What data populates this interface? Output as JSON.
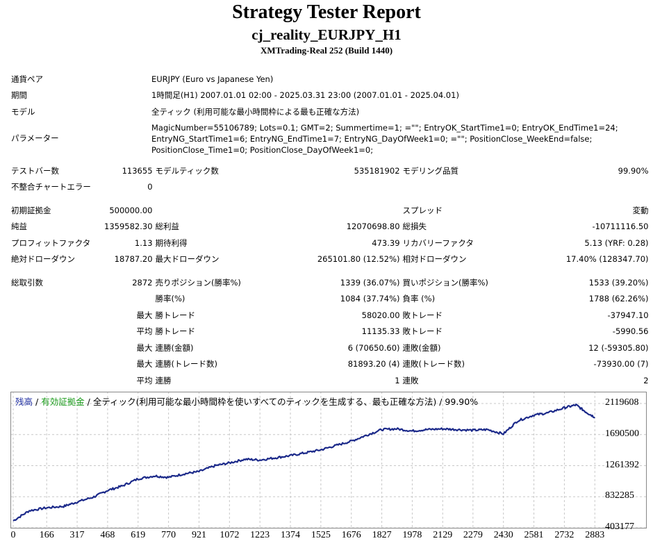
{
  "header": {
    "title": "Strategy Tester Report",
    "subtitle": "cj_reality_EURJPY_H1",
    "build": "XMTrading-Real 252 (Build 1440)"
  },
  "info": {
    "symbol_label": "通貨ペア",
    "symbol_value": "EURJPY (Euro vs Japanese Yen)",
    "period_label": "期間",
    "period_value": "1時間足(H1) 2007.01.01 02:00 - 2025.03.31 23:00 (2007.01.01 - 2025.04.01)",
    "model_label": "モデル",
    "model_value": "全ティック (利用可能な最小時間枠による最も正確な方法)",
    "params_label": "パラメーター",
    "params_line1": "MagicNumber=55106789; Lots=0.1; GMT=2; Summertime=1;     =\"\"; EntryOK_StartTime1=0; EntryOK_EndTime1=24;",
    "params_line2": "EntryNG_StartTime1=6; EntryNG_EndTime1=7; EntryNG_DayOfWeek1=0;           =\"\"; PositionClose_WeekEnd=false;",
    "params_line3": "PositionClose_Time1=0; PositionClose_DayOfWeek1=0;"
  },
  "stats": {
    "bars_label": "テストバー数",
    "bars_value": "113655",
    "ticks_label": "モデルティック数",
    "ticks_value": "535181902",
    "quality_label": "モデリング品質",
    "quality_value": "99.90%",
    "mismatch_label": "不整合チャートエラー",
    "mismatch_value": "0",
    "deposit_label": "初期証拠金",
    "deposit_value": "500000.00",
    "spread_label": "スプレッド",
    "spread_value": "変動",
    "net_label": "純益",
    "net_value": "1359582.30",
    "gross_profit_label": "総利益",
    "gross_profit_value": "12070698.80",
    "gross_loss_label": "総損失",
    "gross_loss_value": "-10711116.50",
    "pf_label": "プロフィットファクタ",
    "pf_value": "1.13",
    "expected_label": "期待利得",
    "expected_value": "473.39",
    "recovery_label": "リカバリーファクタ",
    "recovery_value": "5.13 (YRF: 0.28)",
    "abs_dd_label": "絶対ドローダウン",
    "abs_dd_value": "18787.20",
    "max_dd_label": "最大ドローダウン",
    "max_dd_value": "265101.80 (12.52%)",
    "rel_dd_label": "相対ドローダウン",
    "rel_dd_value": "17.40% (128347.70)",
    "trades_label": "総取引数",
    "trades_value": "2872",
    "short_label": "売りポジション(勝率%)",
    "short_value": "1339 (36.07%)",
    "long_label": "買いポジション(勝率%)",
    "long_value": "1533 (39.20%)",
    "winrate_label": "勝率(%)",
    "winrate_value": "1084 (37.74%)",
    "lossrate_label": "負率 (%)",
    "lossrate_value": "1788 (62.26%)",
    "max_label": "最大",
    "avg_label": "平均",
    "largest_win_label": "勝トレード",
    "largest_win_value": "58020.00",
    "largest_loss_label": "敗トレード",
    "largest_loss_value": "-37947.10",
    "avg_win_label": "勝トレード",
    "avg_win_value": "11135.33",
    "avg_loss_label": "敗トレード",
    "avg_loss_value": "-5990.56",
    "max_consec_wins_label": "連勝(金額)",
    "max_consec_wins_value": "6 (70650.60)",
    "max_consec_losses_label": "連敗(金額)",
    "max_consec_losses_value": "12 (-59305.80)",
    "max_consec_profit_label": "連勝(トレード数)",
    "max_consec_profit_value": "81893.20 (4)",
    "max_consec_loss_label": "連敗(トレード数)",
    "max_consec_loss_value": "-73930.00 (7)",
    "avg_consec_wins_label": "連勝",
    "avg_consec_wins_value": "1",
    "avg_consec_losses_label": "連敗",
    "avg_consec_losses_value": "2"
  },
  "chart_legend": {
    "balance": "残高",
    "sep1": " / ",
    "equity": "有効証拠金",
    "sep2": " / ",
    "rest": "全ティック(利用可能な最小時間枠を使いすべてのティックを生成する、最も正確な方法) / 99.90%"
  },
  "colors": {
    "line": "#1c2a8a",
    "balance_text": "#1f2ea0",
    "equity_text": "#1a9a1a",
    "grid": "#c8c8c8"
  },
  "chart_data": {
    "type": "line",
    "title": "",
    "xlabel": "",
    "ylabel": "",
    "xlim": [
      0,
      2920
    ],
    "ylim": [
      403177,
      2283000
    ],
    "yticks": [
      403177,
      832285,
      1261392,
      1690500,
      2119608
    ],
    "xticks": [
      0,
      166,
      317,
      468,
      619,
      770,
      921,
      1072,
      1223,
      1374,
      1525,
      1676,
      1827,
      1978,
      2129,
      2279,
      2430,
      2581,
      2732,
      2883
    ],
    "series": [
      {
        "x": [
          0,
          80,
          166,
          250,
          317,
          400,
          468,
          540,
          619,
          700,
          770,
          850,
          921,
          1000,
          1072,
          1150,
          1223,
          1300,
          1374,
          1450,
          1525,
          1600,
          1676,
          1750,
          1827,
          1900,
          1978,
          2050,
          2129,
          2200,
          2279,
          2350,
          2430,
          2500,
          2581,
          2650,
          2732,
          2790,
          2840,
          2883
        ],
        "y": [
          500000,
          640000,
          680000,
          700000,
          760000,
          830000,
          920000,
          980000,
          1080000,
          1120000,
          1100000,
          1150000,
          1180000,
          1260000,
          1300000,
          1350000,
          1340000,
          1370000,
          1400000,
          1440000,
          1480000,
          1540000,
          1600000,
          1680000,
          1760000,
          1770000,
          1740000,
          1760000,
          1770000,
          1760000,
          1750000,
          1760000,
          1700000,
          1880000,
          1960000,
          1990000,
          2060000,
          2100000,
          2000000,
          1930000
        ]
      }
    ]
  }
}
